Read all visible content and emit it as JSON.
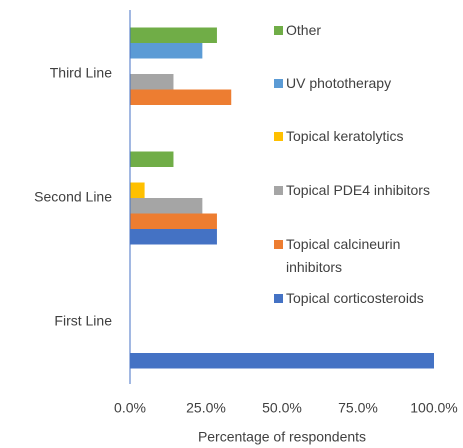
{
  "chart_data": {
    "type": "bar",
    "orientation": "horizontal",
    "categories": [
      "First Line",
      "Second Line",
      "Third Line"
    ],
    "series": [
      {
        "name": "Topical corticosteroids",
        "color": "#4472c4",
        "values": [
          100,
          28.6,
          0
        ]
      },
      {
        "name": "Topical calcineurin inhibitors",
        "color": "#ed7d31",
        "values": [
          0,
          28.6,
          33.3
        ]
      },
      {
        "name": "Topical PDE4 inhibitors",
        "color": "#a5a5a5",
        "values": [
          0,
          23.8,
          14.3
        ]
      },
      {
        "name": "Topical keratolytics",
        "color": "#ffc000",
        "values": [
          0,
          4.8,
          0
        ]
      },
      {
        "name": "UV phototherapy",
        "color": "#5b9bd5",
        "values": [
          0,
          0,
          23.8
        ]
      },
      {
        "name": "Other",
        "color": "#70ad47",
        "values": [
          0,
          14.3,
          28.6
        ]
      }
    ],
    "xlabel": "Percentage of respondents",
    "xlim": [
      0,
      100
    ],
    "xticks": [
      {
        "value": 0,
        "label": "0.0%"
      },
      {
        "value": 25,
        "label": "25.0%"
      },
      {
        "value": 50,
        "label": "50.0%"
      },
      {
        "value": 75,
        "label": "75.0%"
      },
      {
        "value": 100,
        "label": "100.0%"
      }
    ],
    "grid": false,
    "legend": "right"
  }
}
